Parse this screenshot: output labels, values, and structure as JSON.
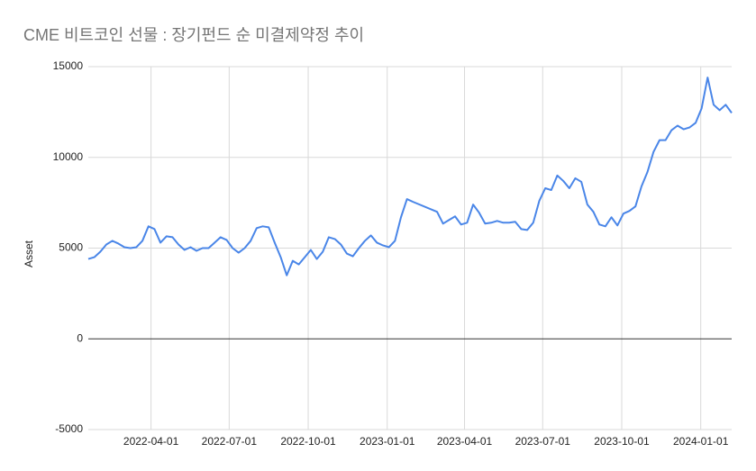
{
  "chart_data": {
    "type": "line",
    "title": "CME 비트코인 선물 : 장기펀드 순 미결제약정 추이",
    "y_label": "Asset",
    "x": [
      "2022-01-18",
      "2022-01-25",
      "2022-02-01",
      "2022-02-08",
      "2022-02-15",
      "2022-02-22",
      "2022-03-01",
      "2022-03-08",
      "2022-03-15",
      "2022-03-22",
      "2022-03-29",
      "2022-04-05",
      "2022-04-12",
      "2022-04-19",
      "2022-04-26",
      "2022-05-03",
      "2022-05-10",
      "2022-05-17",
      "2022-05-24",
      "2022-05-31",
      "2022-06-07",
      "2022-06-14",
      "2022-06-21",
      "2022-06-28",
      "2022-07-05",
      "2022-07-12",
      "2022-07-19",
      "2022-07-26",
      "2022-08-02",
      "2022-08-09",
      "2022-08-16",
      "2022-08-23",
      "2022-08-30",
      "2022-09-06",
      "2022-09-13",
      "2022-09-20",
      "2022-09-27",
      "2022-10-04",
      "2022-10-11",
      "2022-10-18",
      "2022-10-25",
      "2022-11-01",
      "2022-11-08",
      "2022-11-15",
      "2022-11-22",
      "2022-11-29",
      "2022-12-06",
      "2022-12-13",
      "2022-12-20",
      "2022-12-27",
      "2023-01-03",
      "2023-01-10",
      "2023-01-17",
      "2023-01-24",
      "2023-01-31",
      "2023-02-28",
      "2023-03-07",
      "2023-03-14",
      "2023-03-21",
      "2023-03-28",
      "2023-04-04",
      "2023-04-11",
      "2023-04-18",
      "2023-04-25",
      "2023-05-02",
      "2023-05-09",
      "2023-05-16",
      "2023-05-23",
      "2023-05-30",
      "2023-06-06",
      "2023-06-13",
      "2023-06-20",
      "2023-06-27",
      "2023-07-04",
      "2023-07-11",
      "2023-07-18",
      "2023-07-25",
      "2023-08-01",
      "2023-08-08",
      "2023-08-15",
      "2023-08-22",
      "2023-08-29",
      "2023-09-05",
      "2023-09-12",
      "2023-09-19",
      "2023-09-26",
      "2023-10-03",
      "2023-10-10",
      "2023-10-17",
      "2023-10-24",
      "2023-10-31",
      "2023-11-07",
      "2023-11-14",
      "2023-11-21",
      "2023-11-28",
      "2023-12-05",
      "2023-12-12",
      "2023-12-19",
      "2023-12-26",
      "2024-01-02",
      "2024-01-09",
      "2024-01-16",
      "2024-01-23",
      "2024-01-30",
      "2024-02-06"
    ],
    "series": [
      {
        "name": "Asset",
        "color": "#4a86e8",
        "values": [
          4400,
          4500,
          4800,
          5200,
          5400,
          5250,
          5050,
          5000,
          5050,
          5400,
          6200,
          6050,
          5300,
          5650,
          5600,
          5200,
          4900,
          5050,
          4850,
          5000,
          5000,
          5300,
          5600,
          5450,
          5000,
          4750,
          5000,
          5400,
          6100,
          6200,
          6150,
          5300,
          4500,
          3500,
          4300,
          4100,
          4500,
          4900,
          4400,
          4800,
          5600,
          5500,
          5200,
          4700,
          4550,
          5000,
          5400,
          5700,
          5300,
          5150,
          5050,
          5400,
          6700,
          7700,
          7550,
          7000,
          6350,
          6550,
          6750,
          6300,
          6400,
          7400,
          6950,
          6350,
          6400,
          6500,
          6400,
          6400,
          6450,
          6050,
          6000,
          6400,
          7600,
          8300,
          8200,
          9000,
          8700,
          8300,
          8850,
          8650,
          7400,
          7000,
          6300,
          6200,
          6700,
          6250,
          6900,
          7050,
          7300,
          8400,
          9200,
          10300,
          10950,
          10950,
          11500,
          11750,
          11550,
          11650,
          11900,
          12700,
          14400,
          12900,
          12600,
          12900,
          12450
        ]
      }
    ],
    "xlim": [
      "2022-01-18",
      "2024-02-06"
    ],
    "xticks": [
      "2022-04-01",
      "2022-07-01",
      "2022-10-01",
      "2023-01-01",
      "2023-04-01",
      "2023-07-01",
      "2023-10-01",
      "2024-01-01"
    ],
    "ylim": [
      -5000,
      15000
    ],
    "yticks": [
      -5000,
      0,
      5000,
      10000,
      15000
    ],
    "grid": true
  }
}
